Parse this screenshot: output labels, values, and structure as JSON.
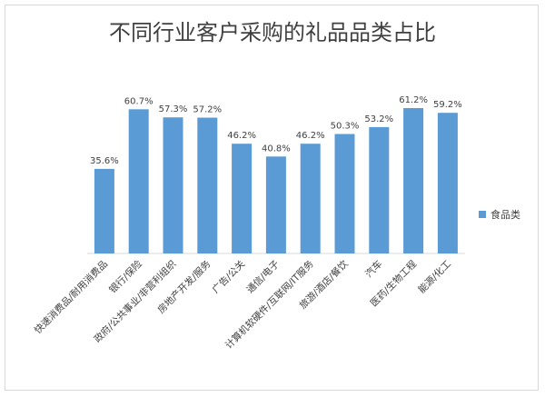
{
  "chart_data": {
    "type": "bar",
    "title": "不同行业客户采购的礼品品类占比",
    "categories": [
      "快速消费品/耐用消费品",
      "银行/保险",
      "政府/公共事业/非营利组织",
      "房地产开发/服务",
      "广告/公关",
      "通信/电子",
      "计算机软硬件/互联网/IT服务",
      "旅游/酒店/餐饮",
      "汽车",
      "医药/生物工程",
      "能源/化工"
    ],
    "series": [
      {
        "name": "食品类",
        "values": [
          35.6,
          60.7,
          57.3,
          57.2,
          46.2,
          40.8,
          46.2,
          50.3,
          53.2,
          61.2,
          59.2
        ],
        "labels": [
          "35.6%",
          "60.7%",
          "57.3%",
          "57.2%",
          "46.2%",
          "40.8%",
          "46.2%",
          "50.3%",
          "53.2%",
          "61.2%",
          "59.2%"
        ]
      }
    ],
    "ylim": [
      0,
      70
    ],
    "grid": false,
    "legend_position": "right",
    "color": "#5b9bd5"
  }
}
